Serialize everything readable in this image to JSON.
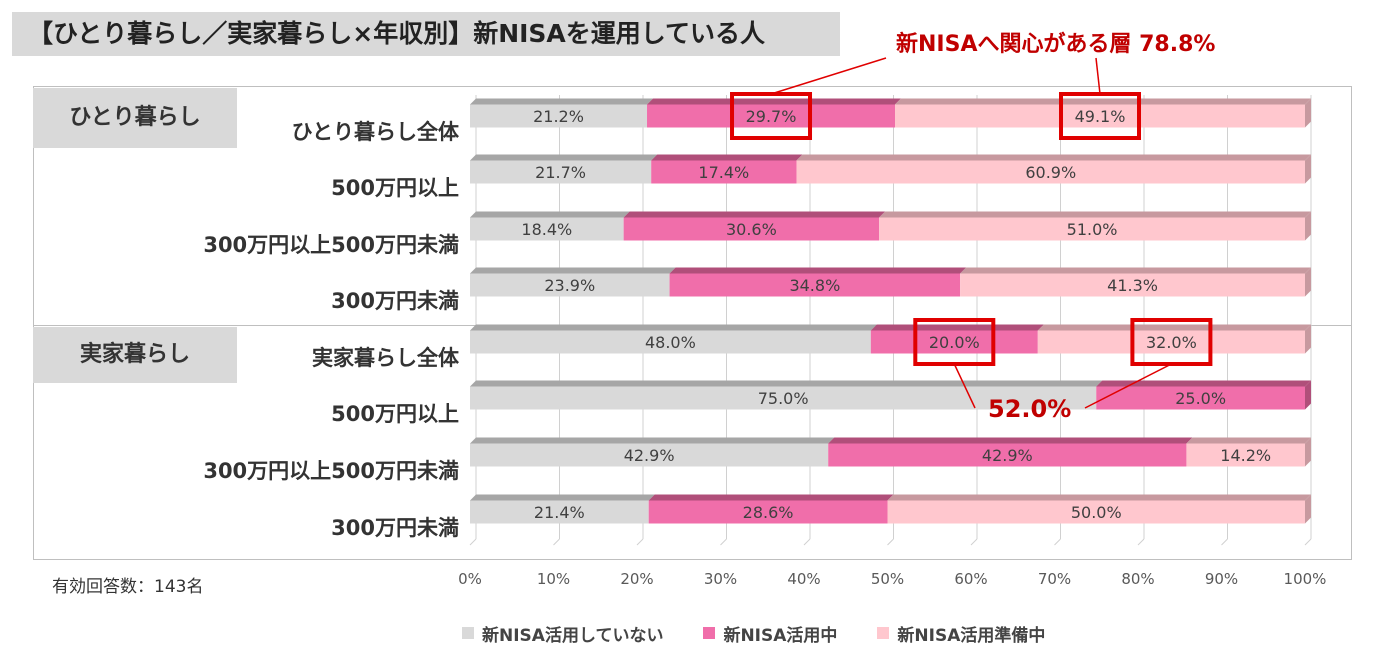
{
  "title": "【ひとり暮らし／実家暮らし×年収別】新NISAを運用している人",
  "footnote": "有効回答数：143名",
  "groups": [
    {
      "label": "ひとり暮らし"
    },
    {
      "label": "実家暮らし"
    }
  ],
  "callouts": {
    "top": "新NISAへ関心がある層  78.8%",
    "middle": "52.0%"
  },
  "colors": {
    "not_using": "#d9d9d9",
    "using": "#f06eaa",
    "preparing": "#ffc7ce",
    "callout": "#e00000",
    "callout_text": "#c00000"
  },
  "chart_data": {
    "type": "stacked-bar-horizontal",
    "categories": [
      "ひとり暮らし全体",
      "500万円以上",
      "300万円以上500万円未満",
      "300万円未満",
      "実家暮らし全体",
      "500万円以上",
      "300万円以上500万円未満",
      "300万円未満"
    ],
    "series": [
      {
        "name": "新NISA活用していない",
        "values": [
          21.2,
          21.7,
          18.4,
          23.9,
          48.0,
          75.0,
          42.9,
          21.4
        ]
      },
      {
        "name": "新NISA活用中",
        "values": [
          29.7,
          17.4,
          30.6,
          34.8,
          20.0,
          25.0,
          42.9,
          28.6
        ]
      },
      {
        "name": "新NISA活用準備中",
        "values": [
          49.1,
          60.9,
          51.0,
          41.3,
          32.0,
          0,
          14.2,
          50.0
        ]
      }
    ],
    "data_labels": [
      [
        "21.2%",
        "29.7%",
        "49.1%"
      ],
      [
        "21.7%",
        "17.4%",
        "60.9%"
      ],
      [
        "18.4%",
        "30.6%",
        "51.0%"
      ],
      [
        "23.9%",
        "34.8%",
        "41.3%"
      ],
      [
        "48.0%",
        "20.0%",
        "32.0%"
      ],
      [
        "75.0%",
        "25.0%",
        ""
      ],
      [
        "42.9%",
        "42.9%",
        "14.2%"
      ],
      [
        "21.4%",
        "28.6%",
        "50.0%"
      ]
    ],
    "xlim": [
      0,
      100
    ],
    "x_ticks": [
      "0%",
      "10%",
      "20%",
      "30%",
      "40%",
      "50%",
      "60%",
      "70%",
      "80%",
      "90%",
      "100%"
    ],
    "legend": [
      "新NISA活用していない",
      "新NISA活用中",
      "新NISA活用準備中"
    ],
    "legend_position": "bottom",
    "grid": true
  }
}
